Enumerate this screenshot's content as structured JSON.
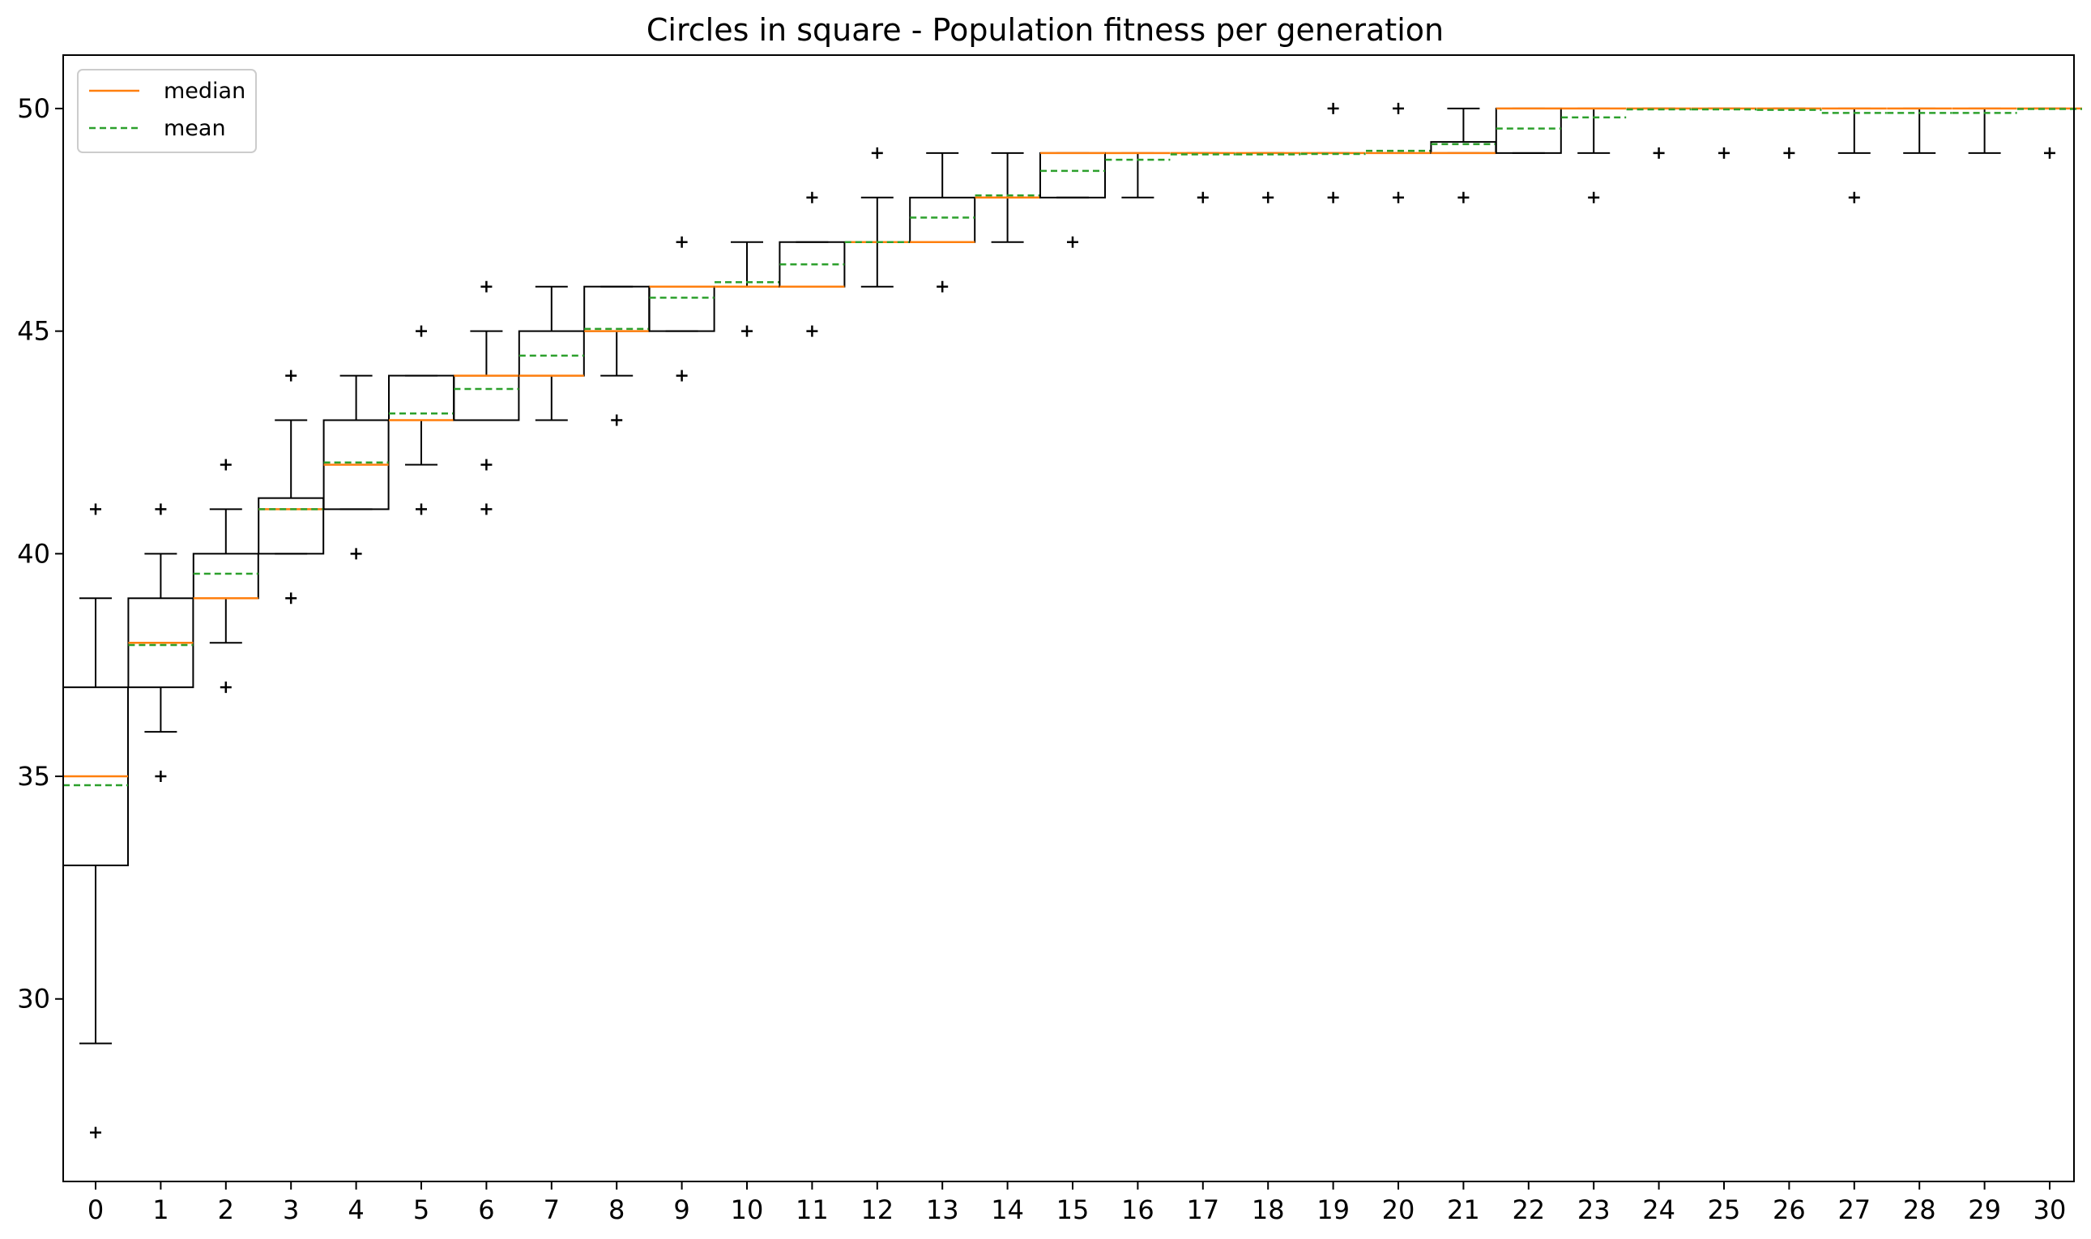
{
  "chart_data": {
    "type": "boxplot",
    "title": "Circles in square - Population fitness per generation",
    "xlabel": "",
    "ylabel": "",
    "ylim": [
      25.9,
      51.2
    ],
    "yticks": [
      30,
      35,
      40,
      45,
      50
    ],
    "grid": false,
    "legend": {
      "placement": "top-left",
      "entries": [
        {
          "label": "median",
          "style": "solid",
          "color": "#ff7f0e"
        },
        {
          "label": "mean",
          "style": "dashed",
          "color": "#2ca02c"
        }
      ]
    },
    "colors": {
      "median": "#ff7f0e",
      "mean": "#2ca02c",
      "box": "#000000"
    },
    "categories": [
      "0",
      "1",
      "2",
      "3",
      "4",
      "5",
      "6",
      "7",
      "8",
      "9",
      "10",
      "11",
      "12",
      "13",
      "14",
      "15",
      "16",
      "17",
      "18",
      "19",
      "20",
      "21",
      "22",
      "23",
      "24",
      "25",
      "26",
      "27",
      "28",
      "29",
      "30"
    ],
    "boxes": [
      {
        "gen": 0,
        "whislo": 29,
        "q1": 33,
        "med": 35,
        "q3": 37,
        "whishi": 39,
        "mean": 34.8,
        "fliers": [
          27,
          41
        ]
      },
      {
        "gen": 1,
        "whislo": 36,
        "q1": 37,
        "med": 38,
        "q3": 39,
        "whishi": 40,
        "mean": 37.95,
        "fliers": [
          35,
          41
        ]
      },
      {
        "gen": 2,
        "whislo": 38,
        "q1": 39,
        "med": 39,
        "q3": 40,
        "whishi": 41,
        "mean": 39.55,
        "fliers": [
          37,
          42
        ]
      },
      {
        "gen": 3,
        "whislo": 40,
        "q1": 40,
        "med": 41,
        "q3": 41.25,
        "whishi": 43,
        "mean": 41.0,
        "fliers": [
          39,
          44
        ]
      },
      {
        "gen": 4,
        "whislo": 41,
        "q1": 41,
        "med": 42,
        "q3": 43,
        "whishi": 44,
        "mean": 42.05,
        "fliers": [
          40
        ]
      },
      {
        "gen": 5,
        "whislo": 42,
        "q1": 43,
        "med": 43,
        "q3": 44,
        "whishi": 44,
        "mean": 43.15,
        "fliers": [
          41,
          45
        ]
      },
      {
        "gen": 6,
        "whislo": 43,
        "q1": 43,
        "med": 44,
        "q3": 44,
        "whishi": 45,
        "mean": 43.7,
        "fliers": [
          41,
          42,
          46
        ]
      },
      {
        "gen": 7,
        "whislo": 43,
        "q1": 44,
        "med": 44,
        "q3": 45,
        "whishi": 46,
        "mean": 44.45,
        "fliers": []
      },
      {
        "gen": 8,
        "whislo": 44,
        "q1": 45,
        "med": 45,
        "q3": 46,
        "whishi": 46,
        "mean": 45.05,
        "fliers": [
          43
        ]
      },
      {
        "gen": 9,
        "whislo": 45,
        "q1": 45,
        "med": 46,
        "q3": 46,
        "whishi": 46,
        "mean": 45.75,
        "fliers": [
          44,
          47
        ]
      },
      {
        "gen": 10,
        "whislo": 46,
        "q1": 46,
        "med": 46,
        "q3": 46,
        "whishi": 47,
        "mean": 46.1,
        "fliers": [
          45
        ]
      },
      {
        "gen": 11,
        "whislo": 46,
        "q1": 46,
        "med": 46,
        "q3": 47,
        "whishi": 47,
        "mean": 46.5,
        "fliers": [
          45,
          48
        ]
      },
      {
        "gen": 12,
        "whislo": 46,
        "q1": 47,
        "med": 47,
        "q3": 47,
        "whishi": 48,
        "mean": 47.0,
        "fliers": [
          49
        ]
      },
      {
        "gen": 13,
        "whislo": 47,
        "q1": 47,
        "med": 47,
        "q3": 48,
        "whishi": 49,
        "mean": 47.55,
        "fliers": [
          46
        ]
      },
      {
        "gen": 14,
        "whislo": 47,
        "q1": 48,
        "med": 48,
        "q3": 48,
        "whishi": 49,
        "mean": 48.05,
        "fliers": []
      },
      {
        "gen": 15,
        "whislo": 48,
        "q1": 48,
        "med": 49,
        "q3": 49,
        "whishi": 49,
        "mean": 48.6,
        "fliers": [
          47
        ]
      },
      {
        "gen": 16,
        "whislo": 48,
        "q1": 49,
        "med": 49,
        "q3": 49,
        "whishi": 49,
        "mean": 48.85,
        "fliers": []
      },
      {
        "gen": 17,
        "whislo": 49,
        "q1": 49,
        "med": 49,
        "q3": 49,
        "whishi": 49,
        "mean": 48.97,
        "fliers": [
          48
        ]
      },
      {
        "gen": 18,
        "whislo": 49,
        "q1": 49,
        "med": 49,
        "q3": 49,
        "whishi": 49,
        "mean": 48.97,
        "fliers": [
          48
        ]
      },
      {
        "gen": 19,
        "whislo": 49,
        "q1": 49,
        "med": 49,
        "q3": 49,
        "whishi": 49,
        "mean": 48.98,
        "fliers": [
          48,
          50
        ]
      },
      {
        "gen": 20,
        "whislo": 49,
        "q1": 49,
        "med": 49,
        "q3": 49,
        "whishi": 49,
        "mean": 49.05,
        "fliers": [
          48,
          50
        ]
      },
      {
        "gen": 21,
        "whislo": 49,
        "q1": 49,
        "med": 49,
        "q3": 49.25,
        "whishi": 50,
        "mean": 49.2,
        "fliers": [
          48
        ]
      },
      {
        "gen": 22,
        "whislo": 49,
        "q1": 49,
        "med": 50,
        "q3": 50,
        "whishi": 50,
        "mean": 49.55,
        "fliers": []
      },
      {
        "gen": 23,
        "whislo": 49,
        "q1": 50,
        "med": 50,
        "q3": 50,
        "whishi": 50,
        "mean": 49.8,
        "fliers": [
          48
        ]
      },
      {
        "gen": 24,
        "whislo": 50,
        "q1": 50,
        "med": 50,
        "q3": 50,
        "whishi": 50,
        "mean": 49.98,
        "fliers": [
          49
        ]
      },
      {
        "gen": 25,
        "whislo": 50,
        "q1": 50,
        "med": 50,
        "q3": 50,
        "whishi": 50,
        "mean": 49.98,
        "fliers": [
          49
        ]
      },
      {
        "gen": 26,
        "whislo": 50,
        "q1": 50,
        "med": 50,
        "q3": 50,
        "whishi": 50,
        "mean": 49.97,
        "fliers": [
          49
        ]
      },
      {
        "gen": 27,
        "whislo": 49,
        "q1": 50,
        "med": 50,
        "q3": 50,
        "whishi": 50,
        "mean": 49.9,
        "fliers": [
          48
        ]
      },
      {
        "gen": 28,
        "whislo": 49,
        "q1": 50,
        "med": 50,
        "q3": 50,
        "whishi": 50,
        "mean": 49.9,
        "fliers": []
      },
      {
        "gen": 29,
        "whislo": 49,
        "q1": 50,
        "med": 50,
        "q3": 50,
        "whishi": 50,
        "mean": 49.9,
        "fliers": []
      },
      {
        "gen": 30,
        "whislo": 50,
        "q1": 50,
        "med": 50,
        "q3": 50,
        "whishi": 50,
        "mean": 49.99,
        "fliers": [
          49
        ]
      }
    ]
  }
}
